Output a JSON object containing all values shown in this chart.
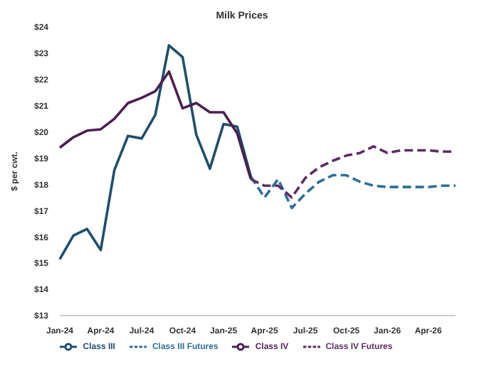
{
  "chart_data": {
    "type": "line",
    "title": "Milk Prices",
    "ylabel": "$ per cwt.",
    "categories": [
      "Jan-24",
      null,
      null,
      "Apr-24",
      null,
      null,
      "Jul-24",
      null,
      null,
      "Oct-24",
      null,
      null,
      "Jan-25",
      null,
      null,
      "Apr-25",
      null,
      null,
      "Jul-25",
      null,
      null,
      "Oct-25",
      null,
      null,
      "Jan-26",
      null,
      null,
      "Apr-26",
      null,
      null
    ],
    "series": [
      {
        "name": "Class III",
        "color": "#1f4e6b",
        "line_style": "solid",
        "values": [
          15.15,
          16.05,
          16.3,
          15.5,
          18.55,
          19.85,
          19.75,
          20.65,
          23.3,
          22.85,
          19.9,
          18.6,
          20.3,
          20.2,
          18.3,
          null,
          null,
          null,
          null,
          null,
          null,
          null,
          null,
          null,
          null,
          null,
          null,
          null,
          null,
          null
        ]
      },
      {
        "name": "Class III Futures",
        "color": "#2e6f99",
        "line_style": "dashed",
        "values": [
          null,
          null,
          null,
          null,
          null,
          null,
          null,
          null,
          null,
          null,
          null,
          null,
          null,
          null,
          18.3,
          17.5,
          18.2,
          17.1,
          17.65,
          18.1,
          18.35,
          18.35,
          18.1,
          17.95,
          17.9,
          17.9,
          17.9,
          17.9,
          17.95,
          17.95
        ]
      },
      {
        "name": "Class IV",
        "color": "#4b1f4f",
        "line_style": "solid",
        "values": [
          19.4,
          19.8,
          20.05,
          20.1,
          20.5,
          21.1,
          21.3,
          21.55,
          22.3,
          20.9,
          21.1,
          20.75,
          20.75,
          19.95,
          18.2,
          null,
          null,
          null,
          null,
          null,
          null,
          null,
          null,
          null,
          null,
          null,
          null,
          null,
          null,
          null
        ]
      },
      {
        "name": "Class IV Futures",
        "color": "#5c2d63",
        "line_style": "dashed",
        "values": [
          null,
          null,
          null,
          null,
          null,
          null,
          null,
          null,
          null,
          null,
          null,
          null,
          null,
          null,
          18.2,
          17.95,
          17.95,
          17.5,
          18.25,
          18.65,
          18.9,
          19.1,
          19.2,
          19.45,
          19.2,
          19.3,
          19.3,
          19.3,
          19.25,
          19.25
        ]
      }
    ],
    "ylim": [
      13,
      24
    ],
    "yticks": [
      {
        "value": 13,
        "label": "$13"
      },
      {
        "value": 14,
        "label": "$14"
      },
      {
        "value": 15,
        "label": "$15"
      },
      {
        "value": 16,
        "label": "$16"
      },
      {
        "value": 17,
        "label": "$17"
      },
      {
        "value": 18,
        "label": "$18"
      },
      {
        "value": 19,
        "label": "$19"
      },
      {
        "value": 20,
        "label": "$20"
      },
      {
        "value": 21,
        "label": "$21"
      },
      {
        "value": 22,
        "label": "$22"
      },
      {
        "value": 23,
        "label": "$23"
      },
      {
        "value": 24,
        "label": "$24"
      }
    ],
    "grid": false,
    "legend": "bottom",
    "marker": "none"
  }
}
